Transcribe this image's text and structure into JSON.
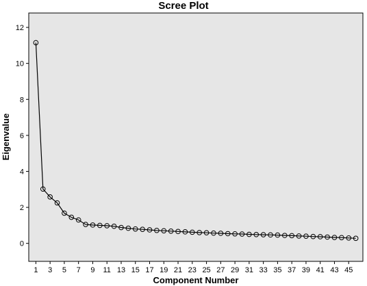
{
  "chart_data": {
    "type": "line",
    "title": "Scree Plot",
    "xlabel": "Component Number",
    "ylabel": "Eigenvalue",
    "xlim": [
      0,
      47
    ],
    "ylim": [
      -1,
      12.8
    ],
    "x_ticks": [
      1,
      3,
      5,
      7,
      9,
      11,
      13,
      15,
      17,
      19,
      21,
      23,
      25,
      27,
      29,
      31,
      33,
      35,
      37,
      39,
      41,
      43,
      45
    ],
    "y_ticks": [
      0,
      2,
      4,
      6,
      8,
      10,
      12
    ],
    "grid": false,
    "legend": "none",
    "background_color": "#e6e6e6",
    "line_color": "#000000",
    "marker": "open-circle",
    "series": [
      {
        "x": [
          1,
          2,
          3,
          4,
          5,
          6,
          7,
          8,
          9,
          10,
          11,
          12,
          13,
          14,
          15,
          16,
          17,
          18,
          19,
          20,
          21,
          22,
          23,
          24,
          25,
          26,
          27,
          28,
          29,
          30,
          31,
          32,
          33,
          34,
          35,
          36,
          37,
          38,
          39,
          40,
          41,
          42,
          43,
          44,
          45,
          46
        ],
        "values": [
          11.15,
          3.02,
          2.58,
          2.25,
          1.68,
          1.45,
          1.3,
          1.05,
          1.02,
          1.0,
          0.98,
          0.95,
          0.88,
          0.84,
          0.8,
          0.78,
          0.75,
          0.72,
          0.7,
          0.68,
          0.66,
          0.64,
          0.62,
          0.6,
          0.59,
          0.57,
          0.56,
          0.54,
          0.53,
          0.52,
          0.5,
          0.49,
          0.48,
          0.47,
          0.46,
          0.44,
          0.43,
          0.41,
          0.4,
          0.38,
          0.37,
          0.35,
          0.33,
          0.32,
          0.3,
          0.28
        ]
      }
    ]
  }
}
